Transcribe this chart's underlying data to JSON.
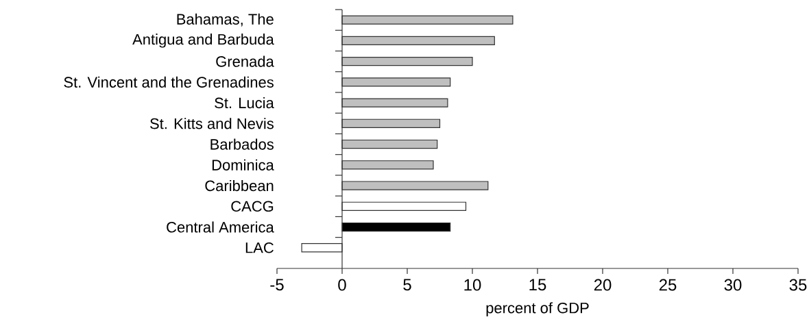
{
  "chart_data": {
    "type": "bar",
    "orientation": "horizontal",
    "xlabel": "percent of GDP",
    "categories": [
      "Bahamas, The",
      "Antigua and Barbuda",
      "Grenada",
      "St. Vincent and the Grenadines",
      "St. Lucia",
      "St. Kitts and Nevis",
      "Barbados",
      "Dominica",
      "Caribbean",
      "CACG",
      "Central America",
      "LAC"
    ],
    "values": [
      13.1,
      11.7,
      10.0,
      8.3,
      8.1,
      7.5,
      7.3,
      7.0,
      11.2,
      9.5,
      8.3,
      -3.1
    ],
    "colors": [
      "#bfbfbf",
      "#bfbfbf",
      "#bfbfbf",
      "#bfbfbf",
      "#bfbfbf",
      "#bfbfbf",
      "#bfbfbf",
      "#bfbfbf",
      "#bfbfbf",
      "#ffffff",
      "#000000",
      "#ffffff"
    ],
    "xlim": [
      -5,
      35
    ],
    "xticks": [
      -5,
      0,
      5,
      10,
      15,
      20,
      25,
      30,
      35
    ],
    "grid": false,
    "ref_lines": [
      {
        "axis": "x",
        "value": 0
      }
    ]
  }
}
